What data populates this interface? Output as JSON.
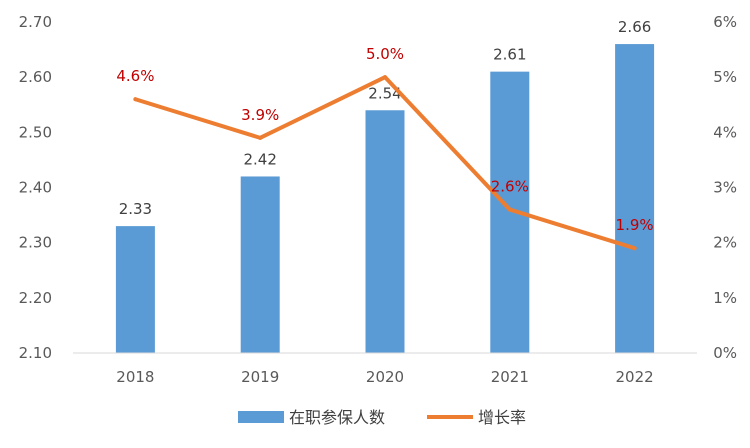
{
  "chart_data": {
    "type": "bar",
    "categories": [
      "2018",
      "2019",
      "2020",
      "2021",
      "2022"
    ],
    "series": [
      {
        "name": "在职参保人数",
        "type": "bar",
        "axis": "left",
        "values": [
          2.33,
          2.42,
          2.54,
          2.61,
          2.66
        ],
        "labels": [
          "2.33",
          "2.42",
          "2.54",
          "2.61",
          "2.66"
        ],
        "color": "#5B9BD5"
      },
      {
        "name": "增长率",
        "type": "line",
        "axis": "right",
        "values": [
          4.6,
          3.9,
          5.0,
          2.6,
          1.9
        ],
        "labels": [
          "4.6%",
          "3.9%",
          "5.0%",
          "2.6%",
          "1.9%"
        ],
        "color": "#ED7D31",
        "label_color": "#C00000"
      }
    ],
    "y_left": {
      "ylim": [
        2.1,
        2.7
      ],
      "ticks": [
        "2.10",
        "2.20",
        "2.30",
        "2.40",
        "2.50",
        "2.60",
        "2.70"
      ]
    },
    "y_right": {
      "ylim": [
        0,
        6
      ],
      "ticks": [
        "0%",
        "1%",
        "2%",
        "3%",
        "4%",
        "5%",
        "6%"
      ]
    },
    "legend": {
      "position": "bottom",
      "entries": [
        "在职参保人数",
        "增长率"
      ]
    },
    "grid": false
  }
}
